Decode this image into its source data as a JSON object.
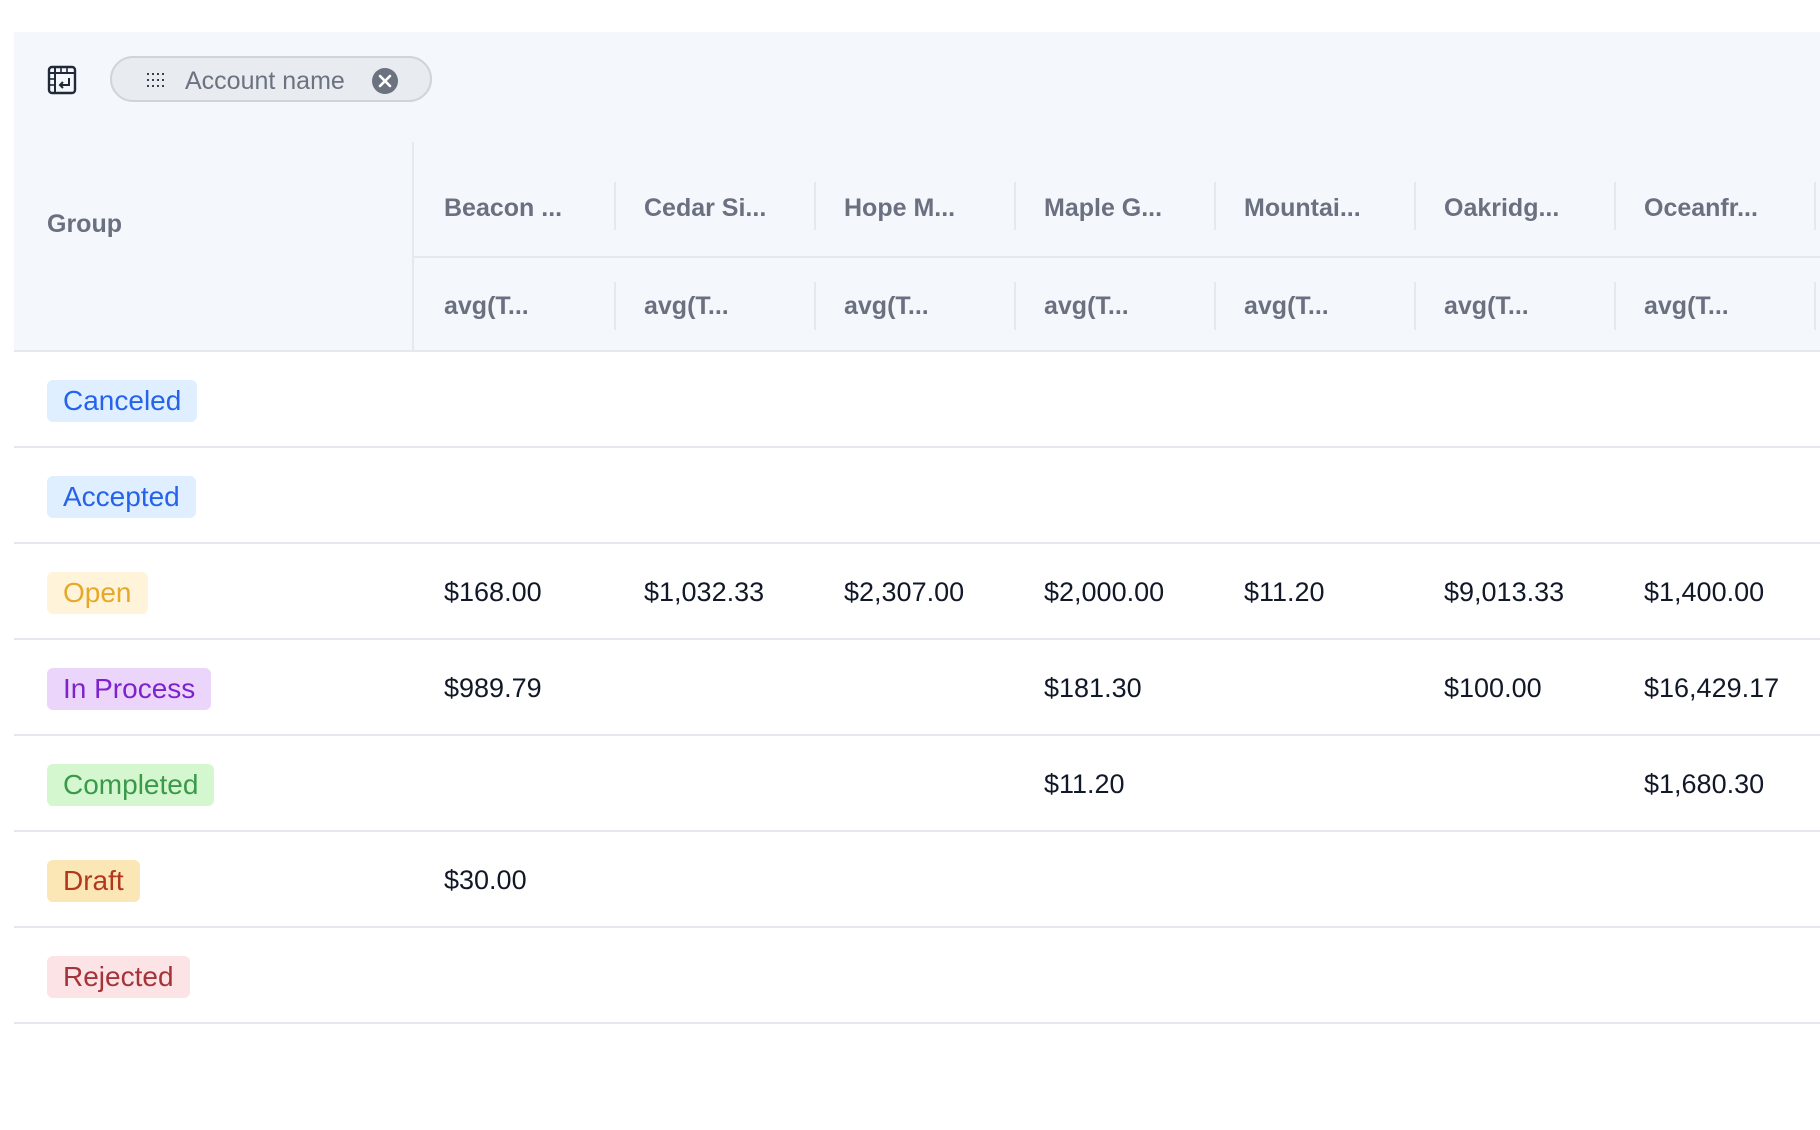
{
  "toolbar": {
    "layout_icon": "pivot-layout-icon",
    "chip": {
      "label": "Account name",
      "grip_icon": "drag-grip-icon",
      "remove_icon": "close-circle-icon"
    }
  },
  "header": {
    "group_label": "Group",
    "columns": [
      {
        "name": "Beacon ...",
        "metric": "avg(T..."
      },
      {
        "name": "Cedar Si...",
        "metric": "avg(T..."
      },
      {
        "name": "Hope M...",
        "metric": "avg(T..."
      },
      {
        "name": "Maple G...",
        "metric": "avg(T..."
      },
      {
        "name": "Mountai...",
        "metric": "avg(T..."
      },
      {
        "name": "Oakridg...",
        "metric": "avg(T..."
      },
      {
        "name": "Oceanfr...",
        "metric": "avg(T..."
      }
    ]
  },
  "rows": [
    {
      "group": "Canceled",
      "bg": "#e0efff",
      "fg": "#2563eb",
      "values": [
        "",
        "",
        "",
        "",
        "",
        "",
        ""
      ]
    },
    {
      "group": "Accepted",
      "bg": "#e0efff",
      "fg": "#2563eb",
      "values": [
        "",
        "",
        "",
        "",
        "",
        "",
        ""
      ]
    },
    {
      "group": "Open",
      "bg": "#fff4d9",
      "fg": "#e6a82b",
      "values": [
        "$168.00",
        "$1,032.33",
        "$2,307.00",
        "$2,000.00",
        "$11.20",
        "$9,013.33",
        "$1,400.00"
      ]
    },
    {
      "group": "In Process",
      "bg": "#ecd5fb",
      "fg": "#7e22ce",
      "values": [
        "$989.79",
        "",
        "",
        "$181.30",
        "",
        "$100.00",
        "$16,429.17"
      ]
    },
    {
      "group": "Completed",
      "bg": "#d5f7cf",
      "fg": "#3a9a4a",
      "values": [
        "",
        "",
        "",
        "$11.20",
        "",
        "",
        "$1,680.30"
      ]
    },
    {
      "group": "Draft",
      "bg": "#fbe7b6",
      "fg": "#b4361d",
      "values": [
        "$30.00",
        "",
        "",
        "",
        "",
        "",
        ""
      ]
    },
    {
      "group": "Rejected",
      "bg": "#fbe3e6",
      "fg": "#a4343a",
      "values": [
        "",
        "",
        "",
        "",
        "",
        "",
        ""
      ]
    }
  ]
}
